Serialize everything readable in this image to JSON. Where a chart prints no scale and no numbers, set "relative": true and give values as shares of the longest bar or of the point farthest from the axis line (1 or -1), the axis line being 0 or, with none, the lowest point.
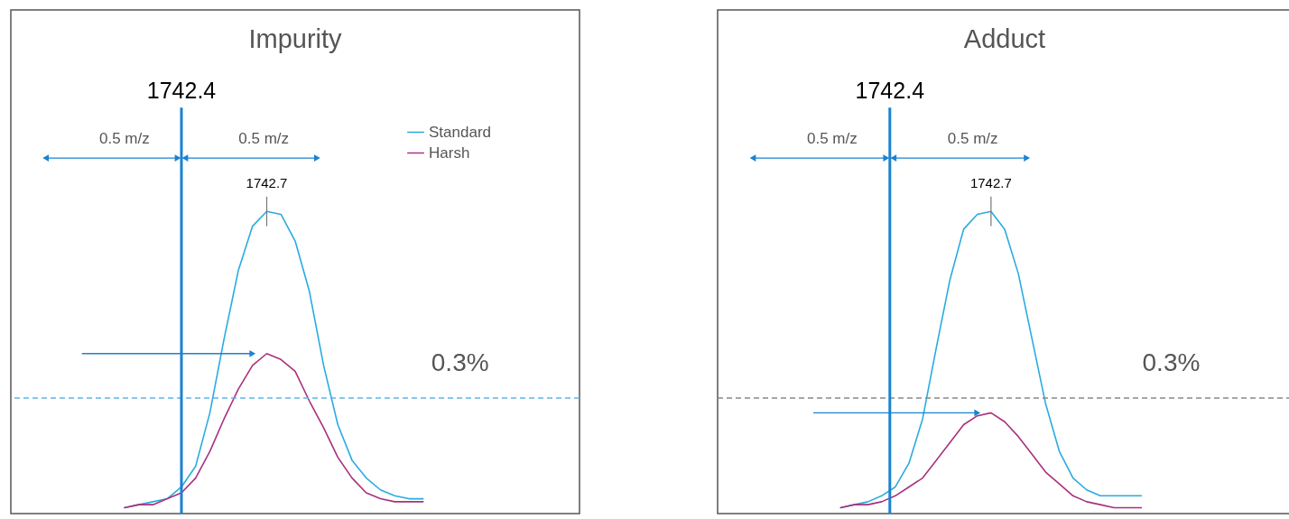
{
  "chart_data": [
    {
      "type": "line",
      "title": "Impurity",
      "relative": true,
      "legend": "top right",
      "categories": [
        null,
        null,
        null,
        null,
        null,
        null,
        null,
        null,
        null,
        null,
        null,
        null,
        null,
        null,
        null,
        null,
        null,
        null,
        null,
        null,
        null,
        null,
        null,
        null,
        null,
        null,
        null,
        null,
        null,
        null,
        null,
        null,
        null,
        null,
        null,
        null,
        null,
        null,
        null,
        null,
        null
      ],
      "series": [
        {
          "name": "Standard",
          "color": "#29abe2",
          "values": [
            null,
            null,
            null,
            null,
            null,
            null,
            null,
            null,
            0,
            0.01,
            0.02,
            0.03,
            0.07,
            0.14,
            0.32,
            0.57,
            0.8,
            0.95,
            1,
            0.99,
            0.9,
            0.73,
            0.48,
            0.28,
            0.16,
            0.1,
            0.06,
            0.04,
            0.03,
            0.03,
            null,
            null,
            null,
            null,
            null,
            null,
            null,
            null,
            null,
            null,
            null
          ]
        },
        {
          "name": "Harsh",
          "color": "#a8317c",
          "values": [
            null,
            null,
            null,
            null,
            null,
            null,
            null,
            null,
            0,
            0.01,
            0.01,
            0.03,
            0.05,
            0.1,
            0.19,
            0.3,
            0.4,
            0.48,
            0.52,
            0.5,
            0.46,
            0.36,
            0.27,
            0.17,
            0.1,
            0.05,
            0.03,
            0.02,
            0.02,
            0.02,
            null,
            null,
            null,
            null,
            null,
            null,
            null,
            null,
            null,
            null,
            null
          ]
        }
      ],
      "ref_lines": [
        {
          "axis": "y",
          "value": 0.37,
          "color": "#5fb4e6",
          "line_style": "dashed"
        }
      ],
      "annotations": [
        "1742.4",
        "0.5 m/z",
        "0.5 m/z",
        {
          "text": "1742.7",
          "y": 1
        },
        "0.3%"
      ]
    },
    {
      "type": "line",
      "title": "Adduct",
      "relative": true,
      "categories": [
        null,
        null,
        null,
        null,
        null,
        null,
        null,
        null,
        null,
        null,
        null,
        null,
        null,
        null,
        null,
        null,
        null,
        null,
        null,
        null,
        null,
        null,
        null,
        null,
        null,
        null,
        null,
        null,
        null,
        null,
        null,
        null,
        null,
        null,
        null,
        null,
        null,
        null,
        null,
        null,
        null,
        null,
        null
      ],
      "series": [
        {
          "color": "#29abe2",
          "values": [
            null,
            null,
            null,
            null,
            null,
            null,
            null,
            null,
            null,
            0,
            0.01,
            0.02,
            0.04,
            0.07,
            0.15,
            0.3,
            0.54,
            0.77,
            0.94,
            0.99,
            1,
            0.94,
            0.79,
            0.57,
            0.35,
            0.19,
            0.1,
            0.06,
            0.04,
            0.04,
            0.04,
            0.04,
            null,
            null,
            null,
            null,
            null,
            null,
            null,
            null,
            null,
            null,
            null
          ]
        },
        {
          "color": "#a8317c",
          "values": [
            null,
            null,
            null,
            null,
            null,
            null,
            null,
            null,
            null,
            0,
            0.01,
            0.01,
            0.02,
            0.04,
            0.07,
            0.1,
            0.16,
            0.22,
            0.28,
            0.31,
            0.32,
            0.29,
            0.24,
            0.18,
            0.12,
            0.08,
            0.04,
            0.02,
            0.01,
            0,
            0,
            0,
            null,
            null,
            null,
            null,
            null,
            null,
            null,
            null,
            null,
            null,
            null
          ]
        }
      ],
      "ref_lines": [
        {
          "axis": "y",
          "value": 0.37,
          "color": "#888888",
          "line_style": "dashed"
        }
      ],
      "annotations": [
        "1742.4",
        "0.5 m/z",
        "0.5 m/z",
        {
          "text": "1742.7",
          "y": 1
        },
        "0.3%"
      ]
    }
  ]
}
